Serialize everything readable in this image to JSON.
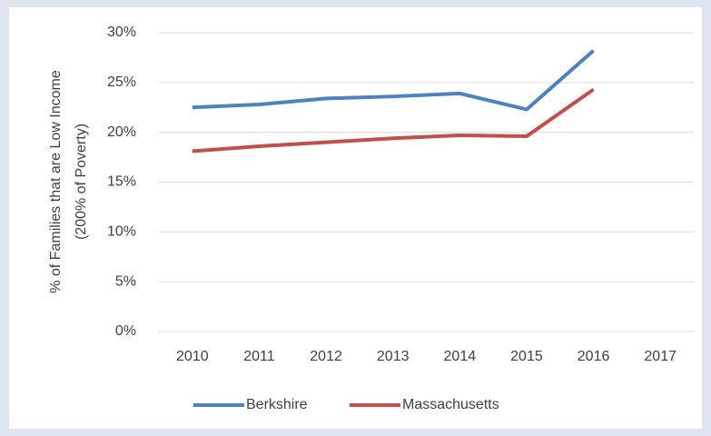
{
  "chart_data": {
    "type": "line",
    "ylabel": [
      "% of Families that are Low Income",
      "(200% of Poverty)"
    ],
    "categories": [
      "2010",
      "2011",
      "2012",
      "2013",
      "2014",
      "2015",
      "2016",
      "2017"
    ],
    "series": [
      {
        "name": "Berkshire",
        "color": "#4f81bd",
        "values": [
          22.5,
          22.8,
          23.4,
          23.6,
          23.9,
          22.3,
          28.2,
          null
        ]
      },
      {
        "name": "Massachusetts",
        "color": "#c0504d",
        "values": [
          18.1,
          18.6,
          19.0,
          19.4,
          19.7,
          19.6,
          24.3,
          null
        ]
      }
    ],
    "ylim": [
      0,
      30
    ],
    "yticks": [
      {
        "value": 0,
        "label": "0%"
      },
      {
        "value": 5,
        "label": "5%"
      },
      {
        "value": 10,
        "label": "10%"
      },
      {
        "value": 15,
        "label": "15%"
      },
      {
        "value": 20,
        "label": "20%"
      },
      {
        "value": 25,
        "label": "25%"
      },
      {
        "value": 30,
        "label": "30%"
      }
    ],
    "grid": true,
    "legend": "bottom"
  }
}
